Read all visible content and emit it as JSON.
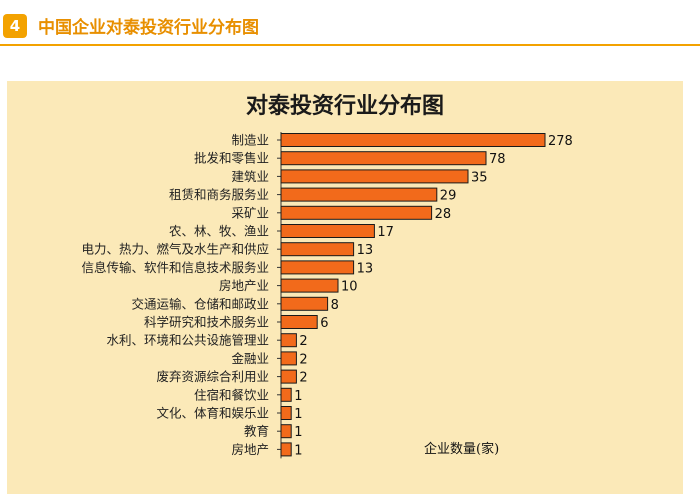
{
  "header": {
    "badge": "4",
    "title": "中国企业对泰投资行业分布图"
  },
  "colors": {
    "accent": "#f3a200",
    "panel": "#fbe9b8",
    "bar": "#f26a1b",
    "bar_stroke": "#1a1a1a"
  },
  "chart_data": {
    "type": "bar",
    "orientation": "horizontal",
    "title": "对泰投资行业分布图",
    "xlabel": "企业数量(家)",
    "categories": [
      "制造业",
      "批发和零售业",
      "建筑业",
      "租赁和商务服务业",
      "采矿业",
      "农、林、牧、渔业",
      "电力、热力、燃气及水生产和供应",
      "信息传输、软件和信息技术服务业",
      "房地产业",
      "交通运输、仓储和邮政业",
      "科学研究和技术服务业",
      "水利、环境和公共设施管理业",
      "金融业",
      "废弃资源综合利用业",
      "住宿和餐饮业",
      "文化、体育和娱乐业",
      "教育",
      "房地产"
    ],
    "values": [
      278,
      78,
      35,
      29,
      28,
      17,
      13,
      13,
      10,
      8,
      6,
      2,
      2,
      2,
      1,
      1,
      1,
      1
    ]
  }
}
